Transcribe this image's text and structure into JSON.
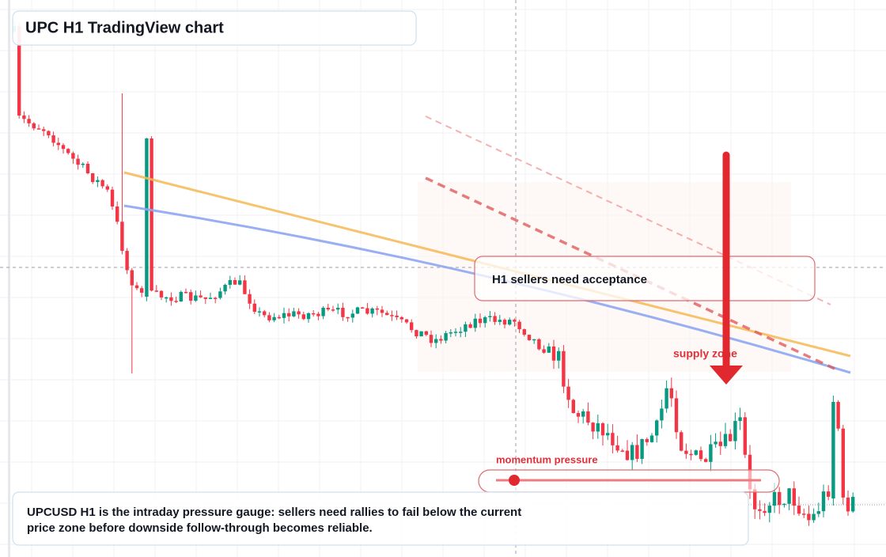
{
  "header": {
    "title": "UPC H1 TradingView chart"
  },
  "chart": {
    "annotation": "H1 sellers need acceptance",
    "zone_label": "supply zone",
    "gauge_label": "momentum pressure"
  },
  "caption": {
    "lines": [
      "UPCUSD H1 is the intraday pressure gauge: sellers need rallies to fail below the current",
      "price zone before downside follow-through becomes reliable."
    ]
  }
}
